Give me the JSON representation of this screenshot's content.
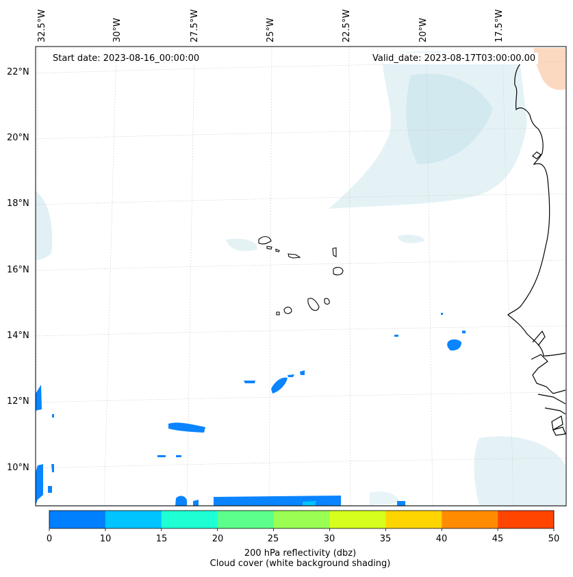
{
  "header": {
    "start_date": "Start date: 2023-08-16_00:00:00",
    "valid_date": "Valid_date: 2023-08-17T03:00:00.00"
  },
  "axes": {
    "lon_labels": [
      "32.5°W",
      "30°W",
      "27.5°W",
      "25°W",
      "22.5°W",
      "20°W",
      "17.5°W"
    ],
    "lat_labels": [
      "22°N",
      "20°N",
      "18°N",
      "16°N",
      "14°N",
      "12°N",
      "10°N"
    ]
  },
  "colorbar": {
    "ticks": [
      "0",
      "10",
      "15",
      "20",
      "25",
      "30",
      "35",
      "40",
      "45",
      "50"
    ],
    "colors": [
      "#0080ff",
      "#00c4ff",
      "#1effd4",
      "#5cff8a",
      "#9aff52",
      "#d6ff1e",
      "#ffd500",
      "#ff8c00",
      "#ff4500"
    ],
    "label_line1": "200 hPa reflectivity (dbz)",
    "label_line2": "Cloud cover (white background shading)"
  },
  "style": {
    "reflectivity_blue": "#0a84ff",
    "coastline": "#000000",
    "cloud": "#d8ecf2",
    "warm": "#fbd8c0"
  }
}
